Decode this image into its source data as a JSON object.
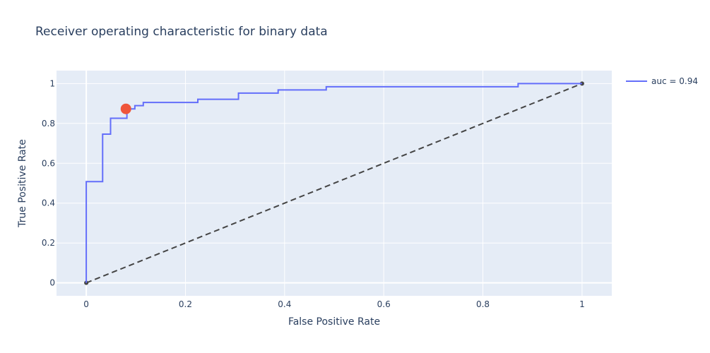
{
  "chart_data": {
    "type": "line",
    "title": "Receiver operating characteristic for binary data",
    "xlabel": "False Positive Rate",
    "ylabel": "True Positive Rate",
    "xlim": [
      -0.06,
      1.06
    ],
    "ylim": [
      -0.065,
      1.065
    ],
    "x_ticks": [
      0,
      0.2,
      0.4,
      0.6,
      0.8,
      1
    ],
    "x_tick_labels": [
      "0",
      "0.2",
      "0.4",
      "0.6",
      "0.8",
      "1"
    ],
    "y_ticks": [
      0,
      0.2,
      0.4,
      0.6,
      0.8,
      1
    ],
    "y_tick_labels": [
      "0",
      "0.2",
      "0.4",
      "0.6",
      "0.8",
      "1"
    ],
    "grid": true,
    "legend_position": "top-right",
    "series": [
      {
        "name": "auc = 0.94",
        "line_shape": "step",
        "color": "#636efa",
        "x": [
          0,
          0,
          0.033,
          0.033,
          0.049,
          0.049,
          0.082,
          0.082,
          0.098,
          0.098,
          0.115,
          0.115,
          0.225,
          0.225,
          0.307,
          0.307,
          0.387,
          0.387,
          0.484,
          0.484,
          0.871,
          0.871,
          1
        ],
        "y": [
          0,
          0.508,
          0.508,
          0.746,
          0.746,
          0.826,
          0.826,
          0.873,
          0.873,
          0.889,
          0.889,
          0.905,
          0.905,
          0.921,
          0.921,
          0.952,
          0.952,
          0.968,
          0.968,
          0.984,
          0.984,
          1,
          1
        ]
      },
      {
        "name": "",
        "line_style": "dashed",
        "color": "#444444",
        "x": [
          0,
          1
        ],
        "y": [
          0,
          1
        ]
      }
    ],
    "highlight_point": {
      "x": 0.08,
      "y": 0.873,
      "color": "#ef553b"
    }
  }
}
